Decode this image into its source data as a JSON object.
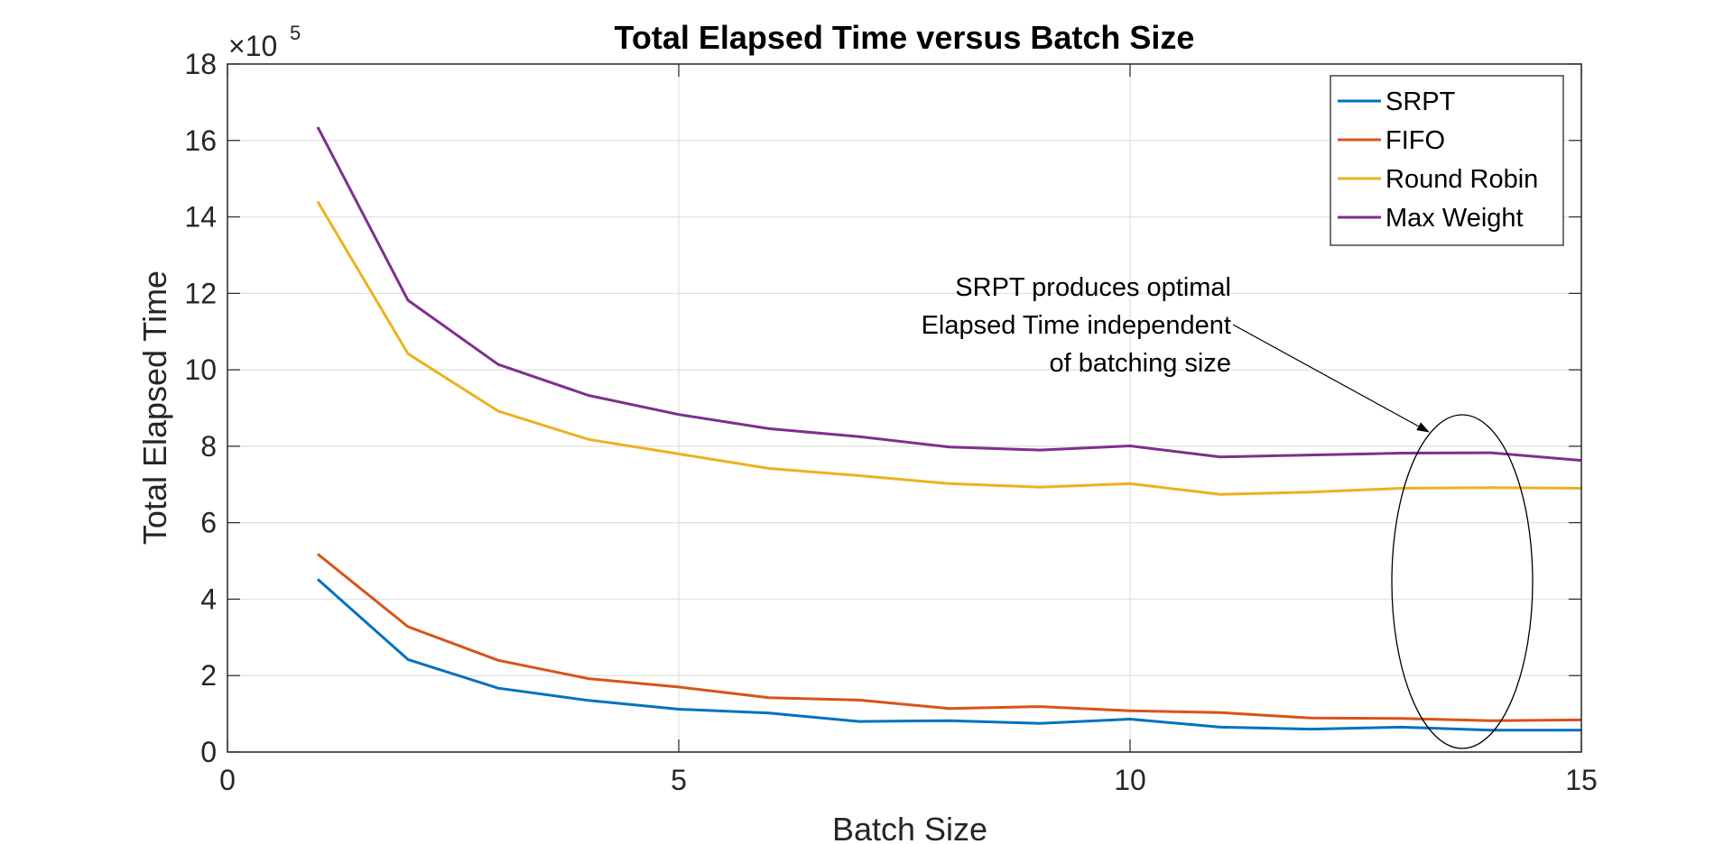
{
  "chart_data": {
    "type": "line",
    "title": "Total Elapsed Time versus Batch Size",
    "xlabel": "Batch Size",
    "ylabel": "Total Elapsed Time",
    "y_exponent_label": "×10",
    "y_exponent_power": "5",
    "y_scale_factor": 100000,
    "xlim": [
      0,
      15
    ],
    "ylim": [
      0,
      18
    ],
    "xticks": [
      0,
      5,
      10,
      15
    ],
    "xtick_labels": [
      "0",
      "5",
      "10",
      "15"
    ],
    "yticks": [
      0,
      2,
      4,
      6,
      8,
      10,
      12,
      14,
      16,
      18
    ],
    "ytick_labels": [
      "0",
      "2",
      "4",
      "6",
      "8",
      "10",
      "12",
      "14",
      "16",
      "18"
    ],
    "grid": true,
    "legend_position": "top-right",
    "x": [
      1,
      2,
      3,
      4,
      5,
      6,
      7,
      8,
      9,
      10,
      11,
      12,
      13,
      14,
      15
    ],
    "series": [
      {
        "name": "SRPT",
        "color": "#0072BD",
        "values": [
          4.52,
          2.42,
          1.67,
          1.35,
          1.12,
          1.02,
          0.8,
          0.82,
          0.75,
          0.86,
          0.65,
          0.6,
          0.65,
          0.57,
          0.57
        ]
      },
      {
        "name": "FIFO",
        "color": "#D95319",
        "values": [
          5.18,
          3.28,
          2.4,
          1.92,
          1.7,
          1.42,
          1.36,
          1.14,
          1.19,
          1.08,
          1.03,
          0.89,
          0.88,
          0.82,
          0.84
        ]
      },
      {
        "name": "Round Robin",
        "color": "#EDB120",
        "values": [
          14.4,
          10.42,
          8.92,
          8.18,
          7.8,
          7.42,
          7.23,
          7.02,
          6.93,
          7.02,
          6.74,
          6.8,
          6.9,
          6.92,
          6.9
        ]
      },
      {
        "name": "Max Weight",
        "color": "#7E2F8E",
        "values": [
          16.35,
          11.82,
          10.14,
          9.33,
          8.83,
          8.46,
          8.25,
          7.98,
          7.9,
          8.01,
          7.72,
          7.77,
          7.82,
          7.83,
          7.63
        ]
      }
    ],
    "annotation": {
      "lines": [
        "SRPT produces optimal",
        "Elapsed Time independent",
        "of batching size"
      ]
    }
  }
}
